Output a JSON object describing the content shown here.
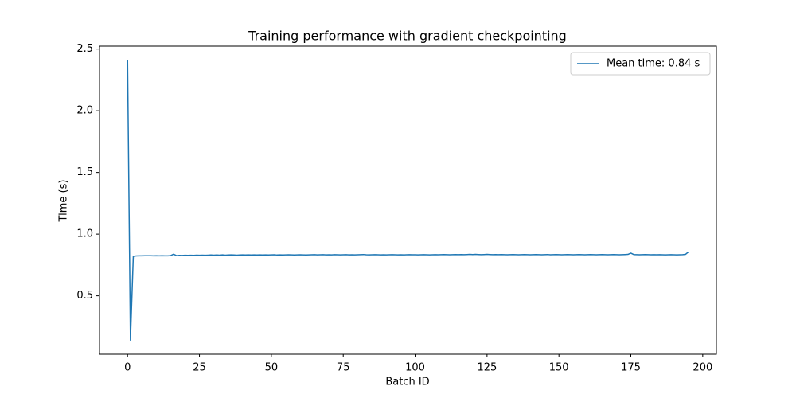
{
  "chart_data": {
    "type": "line",
    "title": "Training performance with gradient checkpointing",
    "xlabel": "Batch ID",
    "ylabel": "Time (s)",
    "x": [
      0,
      1,
      2,
      3,
      4,
      5,
      6,
      7,
      8,
      9,
      10,
      11,
      12,
      13,
      14,
      15,
      16,
      17,
      18,
      19,
      20,
      21,
      22,
      23,
      24,
      25,
      26,
      27,
      28,
      29,
      30,
      31,
      32,
      33,
      34,
      35,
      36,
      37,
      38,
      39,
      40,
      41,
      42,
      43,
      44,
      45,
      46,
      47,
      48,
      49,
      50,
      51,
      52,
      53,
      54,
      55,
      56,
      57,
      58,
      59,
      60,
      61,
      62,
      63,
      64,
      65,
      66,
      67,
      68,
      69,
      70,
      71,
      72,
      73,
      74,
      75,
      76,
      77,
      78,
      79,
      80,
      81,
      82,
      83,
      84,
      85,
      86,
      87,
      88,
      89,
      90,
      91,
      92,
      93,
      94,
      95,
      96,
      97,
      98,
      99,
      100,
      101,
      102,
      103,
      104,
      105,
      106,
      107,
      108,
      109,
      110,
      111,
      112,
      113,
      114,
      115,
      116,
      117,
      118,
      119,
      120,
      121,
      122,
      123,
      124,
      125,
      126,
      127,
      128,
      129,
      130,
      131,
      132,
      133,
      134,
      135,
      136,
      137,
      138,
      139,
      140,
      141,
      142,
      143,
      144,
      145,
      146,
      147,
      148,
      149,
      150,
      151,
      152,
      153,
      154,
      155,
      156,
      157,
      158,
      159,
      160,
      161,
      162,
      163,
      164,
      165,
      166,
      167,
      168,
      169,
      170,
      171,
      172,
      173,
      174,
      175,
      176,
      177,
      178,
      179,
      180,
      181,
      182,
      183,
      184,
      185,
      186,
      187,
      188,
      189,
      190,
      191,
      192,
      193,
      194,
      195
    ],
    "series": [
      {
        "name": "Mean time: 0.84 s",
        "color": "#1f77b4",
        "values": [
          2.41,
          0.14,
          0.82,
          0.823,
          0.824,
          0.824,
          0.825,
          0.825,
          0.825,
          0.824,
          0.825,
          0.824,
          0.825,
          0.824,
          0.824,
          0.826,
          0.838,
          0.826,
          0.828,
          0.827,
          0.829,
          0.828,
          0.829,
          0.828,
          0.83,
          0.829,
          0.83,
          0.829,
          0.83,
          0.831,
          0.83,
          0.831,
          0.83,
          0.832,
          0.83,
          0.831,
          0.832,
          0.831,
          0.83,
          0.831,
          0.832,
          0.831,
          0.832,
          0.831,
          0.832,
          0.831,
          0.832,
          0.831,
          0.832,
          0.831,
          0.832,
          0.833,
          0.831,
          0.832,
          0.831,
          0.832,
          0.833,
          0.832,
          0.831,
          0.832,
          0.833,
          0.832,
          0.831,
          0.832,
          0.833,
          0.834,
          0.832,
          0.833,
          0.834,
          0.832,
          0.833,
          0.832,
          0.834,
          0.833,
          0.832,
          0.833,
          0.834,
          0.832,
          0.833,
          0.832,
          0.833,
          0.834,
          0.835,
          0.833,
          0.832,
          0.833,
          0.834,
          0.833,
          0.832,
          0.833,
          0.832,
          0.833,
          0.834,
          0.833,
          0.832,
          0.833,
          0.832,
          0.833,
          0.834,
          0.833,
          0.833,
          0.832,
          0.833,
          0.834,
          0.833,
          0.832,
          0.833,
          0.834,
          0.833,
          0.834,
          0.835,
          0.834,
          0.833,
          0.834,
          0.835,
          0.834,
          0.835,
          0.834,
          0.835,
          0.836,
          0.835,
          0.836,
          0.835,
          0.834,
          0.835,
          0.836,
          0.835,
          0.834,
          0.835,
          0.834,
          0.835,
          0.834,
          0.833,
          0.834,
          0.835,
          0.834,
          0.833,
          0.834,
          0.835,
          0.834,
          0.833,
          0.834,
          0.835,
          0.834,
          0.833,
          0.834,
          0.835,
          0.833,
          0.834,
          0.835,
          0.834,
          0.833,
          0.834,
          0.835,
          0.834,
          0.833,
          0.834,
          0.835,
          0.834,
          0.833,
          0.834,
          0.835,
          0.834,
          0.833,
          0.834,
          0.835,
          0.834,
          0.833,
          0.834,
          0.835,
          0.834,
          0.833,
          0.834,
          0.835,
          0.836,
          0.846,
          0.835,
          0.834,
          0.833,
          0.834,
          0.835,
          0.834,
          0.833,
          0.834,
          0.833,
          0.834,
          0.833,
          0.832,
          0.833,
          0.834,
          0.833,
          0.832,
          0.833,
          0.834,
          0.836,
          0.855
        ]
      }
    ],
    "xlim": [
      -9.75,
      204.75
    ],
    "xticks": [
      0,
      25,
      50,
      75,
      100,
      125,
      150,
      175,
      200
    ],
    "ylim": [
      0.0265,
      2.5235
    ],
    "yticks": [
      0.5,
      {
        "value": 1,
        "label": "1.0"
      },
      1.5,
      {
        "value": 2,
        "label": "2.0"
      },
      2.5
    ],
    "legend": "upper right",
    "grid": false
  }
}
